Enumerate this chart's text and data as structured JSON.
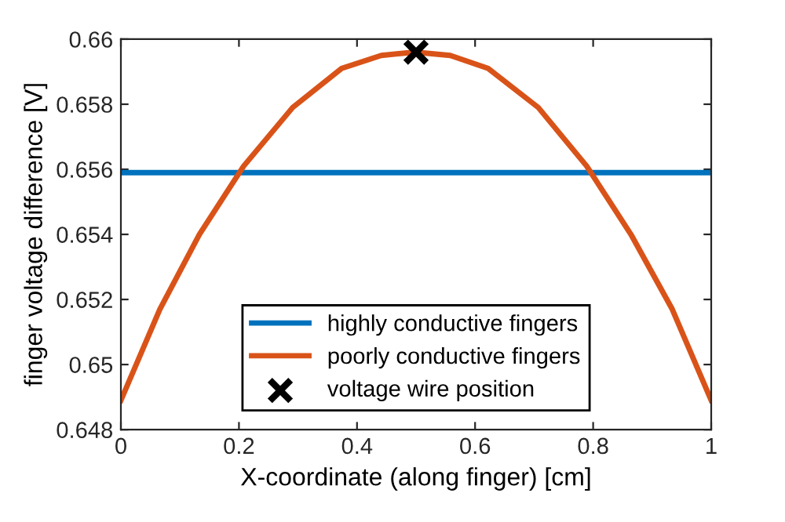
{
  "chart_data": {
    "type": "line",
    "xlabel": "X-coordinate (along finger) [cm]",
    "ylabel": "finger voltage difference [V]",
    "xlim": [
      0,
      1
    ],
    "xticks": [
      0,
      0.2,
      0.4,
      0.6,
      0.8,
      1
    ],
    "ylim": [
      0.648,
      0.66
    ],
    "yticks": [
      0.648,
      0.65,
      0.652,
      0.654,
      0.656,
      0.658,
      0.66
    ],
    "grid": false,
    "legend": "bottom",
    "marker": "none",
    "line_style": "solid",
    "series": [
      {
        "name": "highly conductive fingers",
        "color": "#0072bd",
        "x": [
          0,
          0.5,
          1
        ],
        "values": [
          0.6559,
          0.6559,
          0.6559
        ]
      },
      {
        "name": "poorly conductive fingers",
        "color": "#d95319",
        "x": [
          0,
          0.066,
          0.133,
          0.208,
          0.291,
          0.374,
          0.441,
          0.498,
          0.558,
          0.622,
          0.707,
          0.789,
          0.864,
          0.934,
          1
        ],
        "values": [
          0.6489,
          0.6517,
          0.654,
          0.6561,
          0.6579,
          0.6591,
          0.6595,
          0.6596,
          0.6595,
          0.6591,
          0.6579,
          0.6561,
          0.654,
          0.6517,
          0.6489
        ]
      },
      {
        "name": "voltage wire position",
        "type": "scatter",
        "marker": "cross",
        "color": "#000000",
        "x": [
          0.5
        ],
        "values": [
          0.6596
        ]
      }
    ]
  }
}
